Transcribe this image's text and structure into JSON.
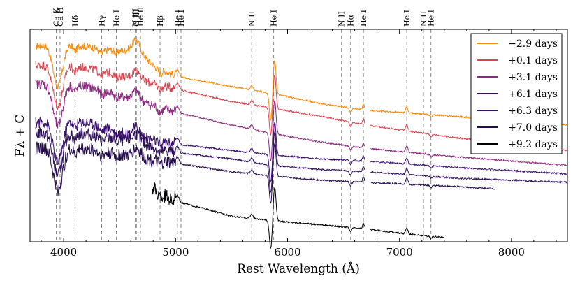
{
  "chart_data": {
    "type": "line",
    "title": "",
    "xlabel": "Rest Wavelength (Å)",
    "ylabel": "Fλ + C",
    "xlim": [
      3700,
      8500
    ],
    "ylim": [
      0,
      10
    ],
    "x_ticks": [
      4000,
      5000,
      6000,
      7000,
      8000
    ],
    "grid": false,
    "legend": "top-right",
    "line_markers": [
      {
        "label": "Ca K",
        "x": 3934
      },
      {
        "label": "Ca H",
        "x": 3968
      },
      {
        "label": "Hδ",
        "x": 4102
      },
      {
        "label": "Hγ",
        "x": 4340
      },
      {
        "label": "He I",
        "x": 4471
      },
      {
        "label": "N III",
        "x": 4640
      },
      {
        "label": "C III",
        "x": 4650
      },
      {
        "label": "He II",
        "x": 4686
      },
      {
        "label": "Hβ",
        "x": 4861
      },
      {
        "label": "He I",
        "x": 5016
      },
      {
        "label": "He I",
        "x": 5048
      },
      {
        "label": "N II",
        "x": 5680
      },
      {
        "label": "He I",
        "x": 5876
      },
      {
        "label": "N II",
        "x": 6482
      },
      {
        "label": "Hα",
        "x": 6563
      },
      {
        "label": "He I",
        "x": 6678
      },
      {
        "label": "He I",
        "x": 7065
      },
      {
        "label": "N II",
        "x": 7214
      },
      {
        "label": "He I",
        "x": 7281
      }
    ],
    "series": [
      {
        "name": "−2.9 days",
        "color": "#f98c0a",
        "x_range": [
          3750,
          8500
        ],
        "gaps": [
          [
            6690,
            6740
          ]
        ],
        "knots": [
          [
            3750,
            9.2
          ],
          [
            4000,
            9.4
          ],
          [
            4300,
            9.1
          ],
          [
            4500,
            9.0
          ],
          [
            4650,
            9.05
          ],
          [
            4800,
            8.3
          ],
          [
            5000,
            7.8
          ],
          [
            5500,
            7.3
          ],
          [
            5850,
            7.0
          ],
          [
            6300,
            6.5
          ],
          [
            6700,
            6.2
          ],
          [
            7500,
            5.9
          ],
          [
            8500,
            5.5
          ]
        ]
      },
      {
        "name": "+0.1 days",
        "color": "#d9454f",
        "x_range": [
          3750,
          8500
        ],
        "gaps": [
          [
            6690,
            6740
          ]
        ],
        "knots": [
          [
            3750,
            8.3
          ],
          [
            4000,
            8.4
          ],
          [
            4300,
            8.1
          ],
          [
            4600,
            7.7
          ],
          [
            5000,
            7.2
          ],
          [
            5500,
            6.6
          ],
          [
            5850,
            6.3
          ],
          [
            6300,
            5.9
          ],
          [
            6700,
            5.5
          ],
          [
            7500,
            4.9
          ],
          [
            8500,
            4.3
          ]
        ]
      },
      {
        "name": "+3.1 days",
        "color": "#8c2981",
        "x_range": [
          3750,
          8500
        ],
        "gaps": [
          [
            6690,
            6740
          ]
        ],
        "knots": [
          [
            3750,
            7.4
          ],
          [
            4000,
            7.5
          ],
          [
            4300,
            7.2
          ],
          [
            4600,
            6.7
          ],
          [
            5000,
            6.1
          ],
          [
            5500,
            5.5
          ],
          [
            5850,
            5.1
          ],
          [
            6300,
            4.7
          ],
          [
            6700,
            4.4
          ],
          [
            7500,
            4.0
          ],
          [
            8500,
            3.6
          ]
        ]
      },
      {
        "name": "+6.1 days",
        "color": "#3b0f70",
        "x_range": [
          3750,
          8500
        ],
        "gaps": [
          [
            6690,
            6740
          ]
        ],
        "knots": [
          [
            3750,
            5.6
          ],
          [
            4000,
            5.8
          ],
          [
            4300,
            5.5
          ],
          [
            4600,
            5.0
          ],
          [
            5000,
            4.6
          ],
          [
            5500,
            4.3
          ],
          [
            5850,
            4.1
          ],
          [
            6300,
            3.9
          ],
          [
            6700,
            3.8
          ],
          [
            7500,
            3.5
          ],
          [
            8500,
            3.2
          ]
        ]
      },
      {
        "name": "+6.3 days",
        "color": "#2e0f5a",
        "x_range": [
          3750,
          8500
        ],
        "gaps": [
          [
            6690,
            6740
          ]
        ],
        "knots": [
          [
            3750,
            5.1
          ],
          [
            4000,
            5.2
          ],
          [
            4300,
            5.0
          ],
          [
            4600,
            4.7
          ],
          [
            5000,
            4.2
          ],
          [
            5500,
            3.9
          ],
          [
            5850,
            3.6
          ],
          [
            6300,
            3.4
          ],
          [
            6700,
            3.3
          ],
          [
            7500,
            3.0
          ],
          [
            8500,
            2.8
          ]
        ]
      },
      {
        "name": "+7.0 days",
        "color": "#240c4a",
        "x_range": [
          3750,
          8500
        ],
        "gaps": [
          [
            6690,
            6740
          ],
          [
            7850,
            8500
          ]
        ],
        "knots": [
          [
            3750,
            4.4
          ],
          [
            4000,
            4.5
          ],
          [
            4300,
            4.3
          ],
          [
            4600,
            4.0
          ],
          [
            5000,
            3.7
          ],
          [
            5500,
            3.3
          ],
          [
            5850,
            3.1
          ],
          [
            6300,
            2.9
          ],
          [
            6700,
            2.8
          ],
          [
            7500,
            2.6
          ],
          [
            7850,
            2.5
          ]
        ]
      },
      {
        "name": "+9.2 days",
        "color": "#000004",
        "x_range": [
          4790,
          8500
        ],
        "gaps": [
          [
            6690,
            6740
          ],
          [
            7400,
            8500
          ]
        ],
        "knots": [
          [
            4790,
            2.5
          ],
          [
            5000,
            1.9
          ],
          [
            5300,
            1.5
          ],
          [
            5500,
            1.2
          ],
          [
            5850,
            1.0
          ],
          [
            6300,
            0.8
          ],
          [
            6700,
            0.6
          ],
          [
            7100,
            0.35
          ],
          [
            7400,
            0.2
          ]
        ]
      }
    ]
  }
}
